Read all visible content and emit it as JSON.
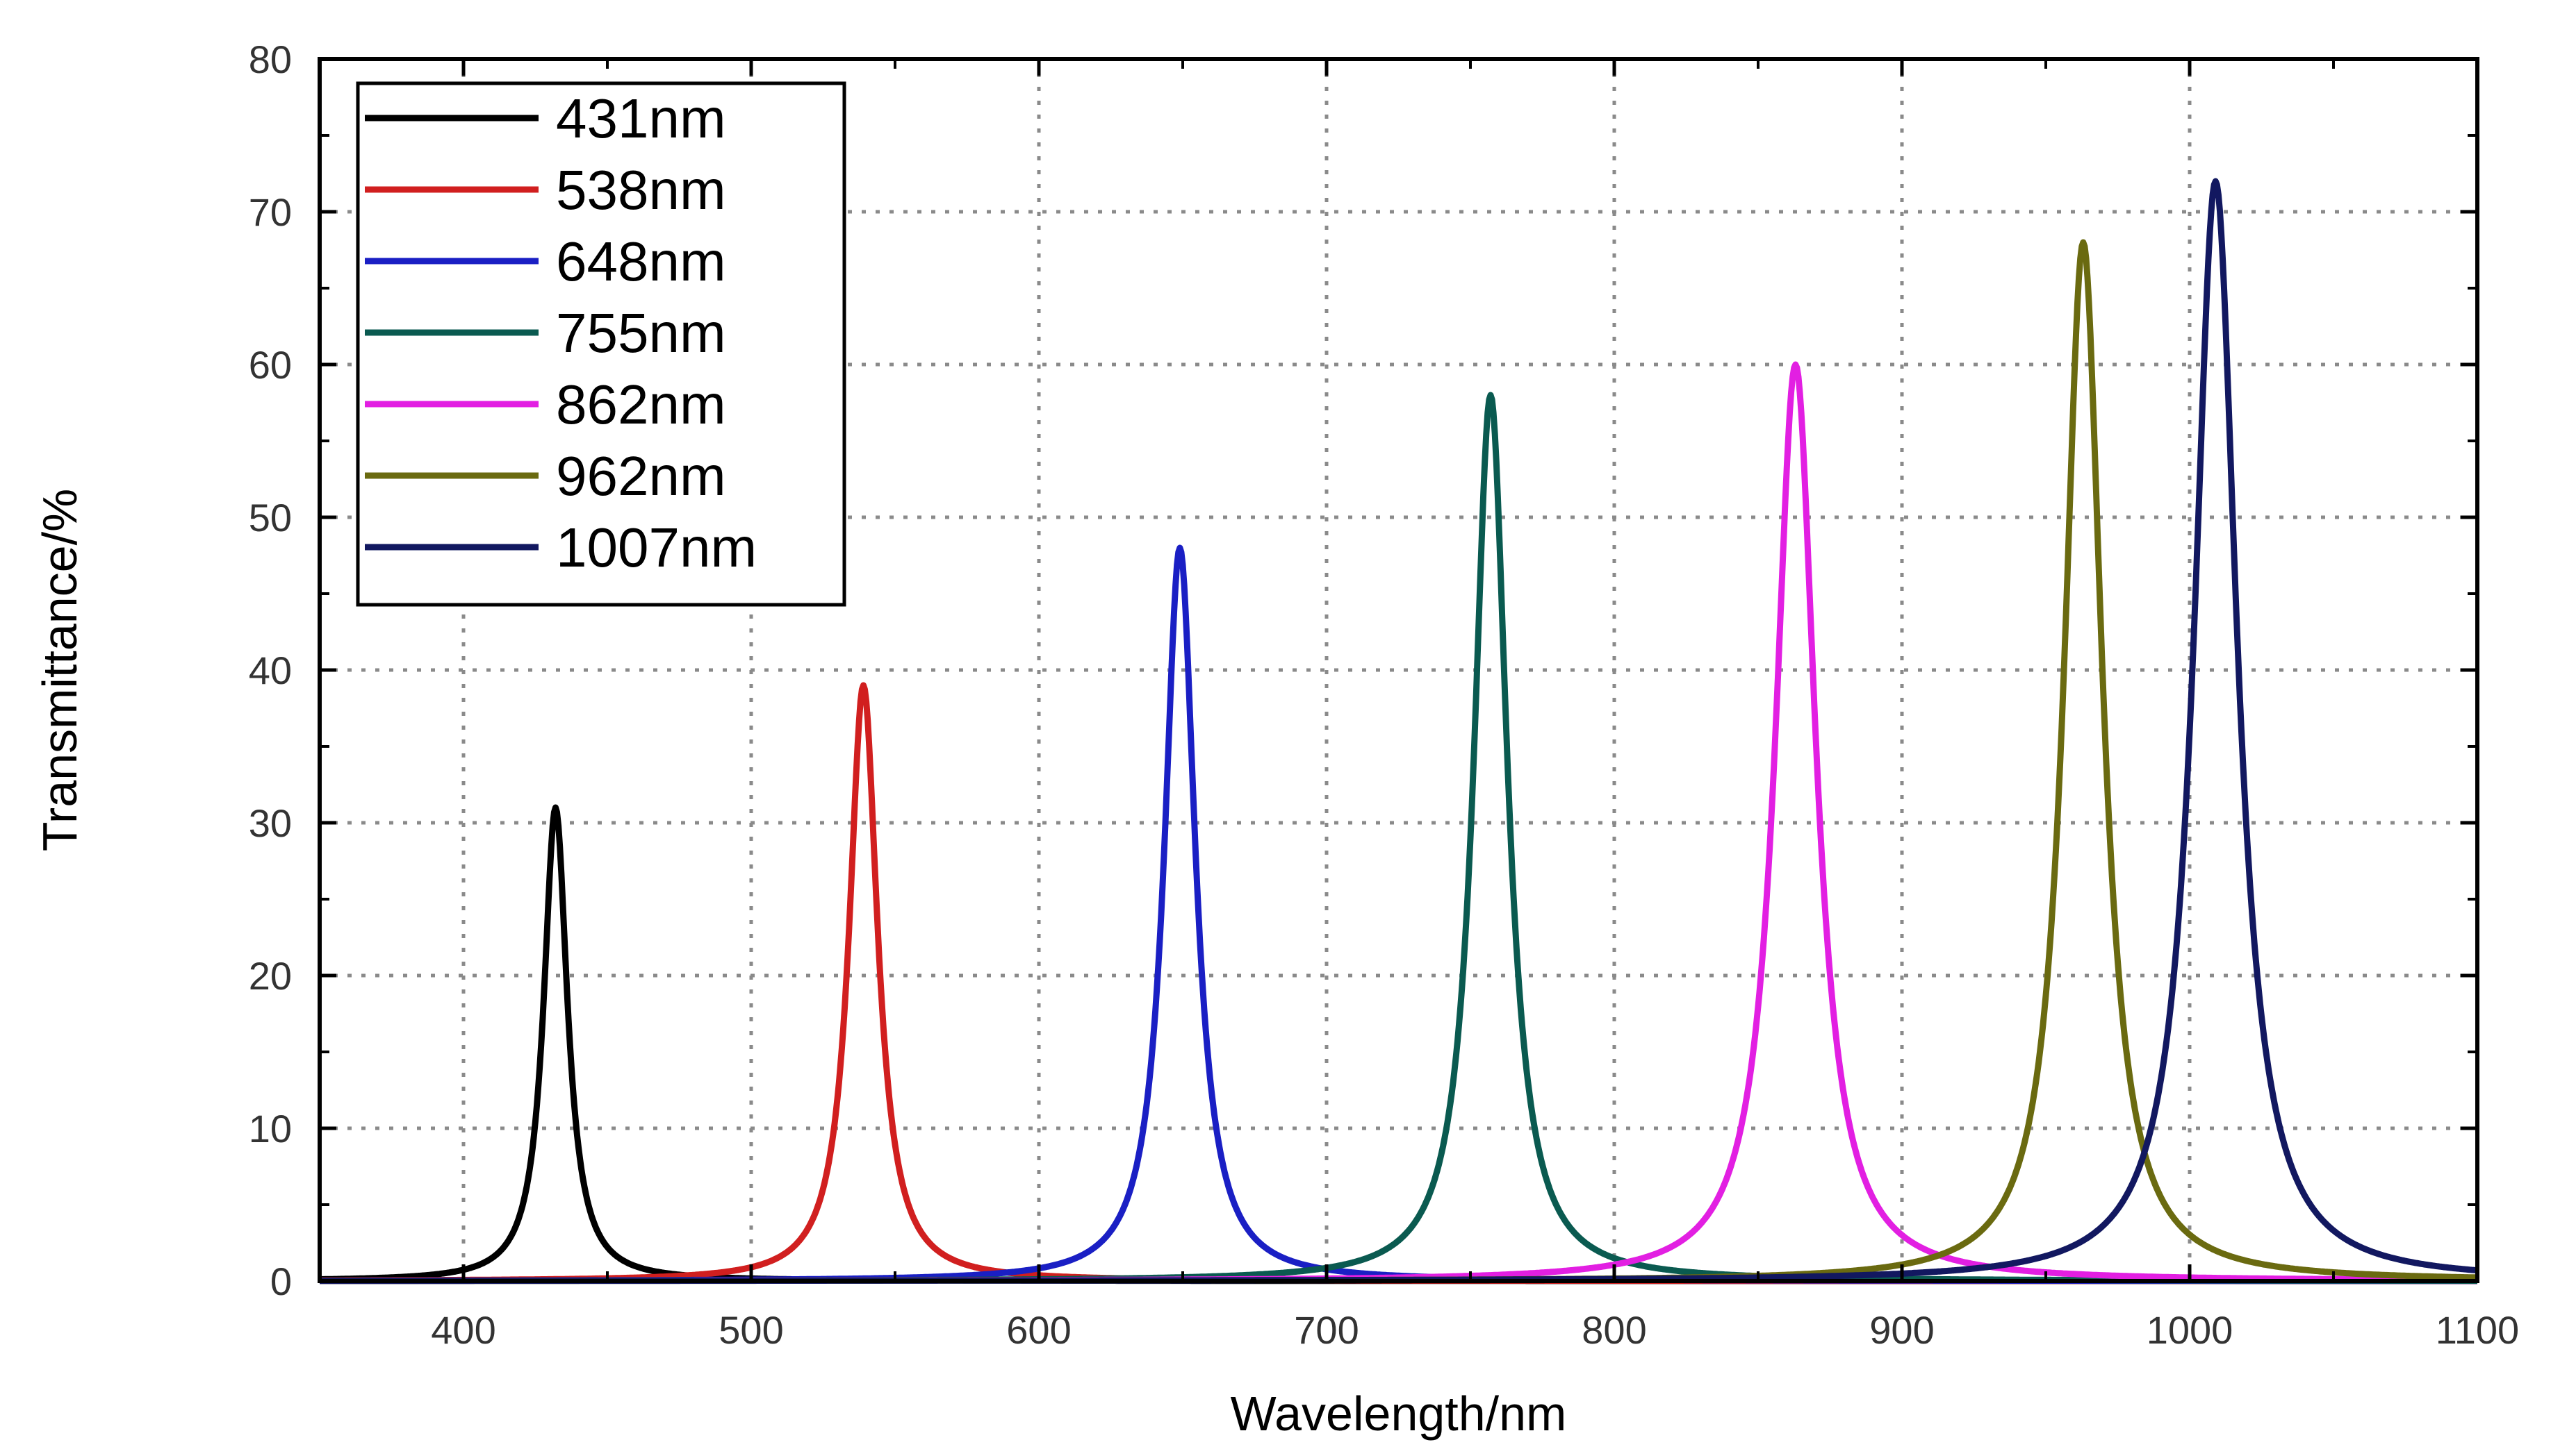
{
  "chart_data": {
    "type": "line",
    "title": "",
    "xlabel": "Wavelength/nm",
    "ylabel": "Transmittance/%",
    "xlim": [
      350,
      1100
    ],
    "ylim": [
      0,
      80
    ],
    "x_ticks": [
      400,
      500,
      600,
      700,
      800,
      900,
      1000,
      1100
    ],
    "y_ticks": [
      0,
      10,
      20,
      30,
      40,
      50,
      60,
      70,
      80
    ],
    "grid": true,
    "legend_position": "top-left",
    "series": [
      {
        "name": "431nm",
        "color": "#000000",
        "center": 432,
        "peak": 31,
        "fwhm": 10
      },
      {
        "name": "538nm",
        "color": "#d11f1f",
        "center": 539,
        "peak": 39,
        "fwhm": 12
      },
      {
        "name": "648nm",
        "color": "#1a1fc4",
        "center": 649,
        "peak": 48,
        "fwhm": 13
      },
      {
        "name": "755nm",
        "color": "#0a5a50",
        "center": 757,
        "peak": 58,
        "fwhm": 14
      },
      {
        "name": "862nm",
        "color": "#e21fe2",
        "center": 863,
        "peak": 60,
        "fwhm": 17
      },
      {
        "name": "962nm",
        "color": "#6a6a10",
        "center": 963,
        "peak": 68,
        "fwhm": 16
      },
      {
        "name": "1007nm",
        "color": "#121860",
        "center": 1009,
        "peak": 72,
        "fwhm": 18
      }
    ]
  }
}
